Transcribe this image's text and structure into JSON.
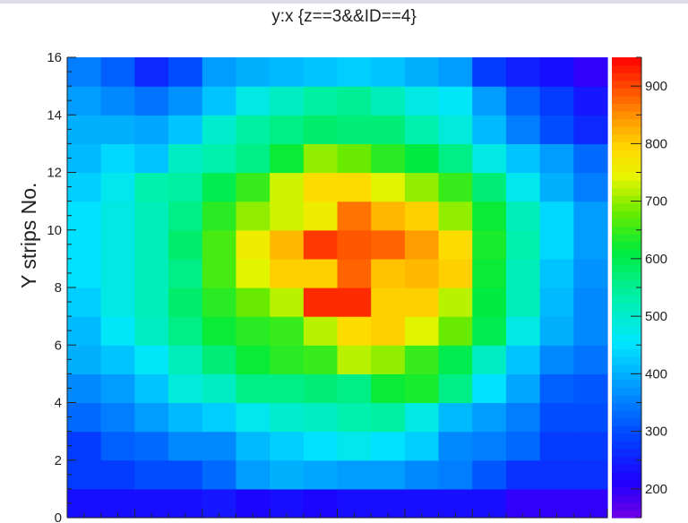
{
  "chart_data": {
    "type": "heatmap",
    "title": "y:x {z==3&&ID==4}",
    "xlabel": "",
    "ylabel": "Y strips No.",
    "xlim": [
      0,
      16
    ],
    "ylim": [
      0,
      16
    ],
    "y_ticks": [
      "0",
      "2",
      "4",
      "6",
      "8",
      "10",
      "12",
      "14",
      "16"
    ],
    "colorbar": {
      "min": 150,
      "max": 950,
      "ticks": [
        "200",
        "300",
        "400",
        "500",
        "600",
        "700",
        "800",
        "900"
      ]
    },
    "grid": false,
    "z": [
      [
        230,
        230,
        230,
        230,
        240,
        220,
        230,
        220,
        230,
        230,
        230,
        230,
        230,
        200,
        200,
        200
      ],
      [
        280,
        280,
        300,
        300,
        330,
        380,
        400,
        390,
        380,
        380,
        360,
        350,
        310,
        270,
        270,
        270
      ],
      [
        280,
        320,
        330,
        360,
        360,
        410,
        430,
        450,
        470,
        450,
        430,
        360,
        350,
        330,
        280,
        280
      ],
      [
        330,
        350,
        380,
        410,
        430,
        470,
        500,
        510,
        530,
        540,
        480,
        410,
        380,
        350,
        300,
        300
      ],
      [
        360,
        380,
        420,
        490,
        510,
        560,
        560,
        570,
        560,
        620,
        630,
        560,
        450,
        390,
        320,
        310
      ],
      [
        400,
        420,
        460,
        520,
        570,
        620,
        640,
        650,
        720,
        700,
        650,
        600,
        510,
        420,
        360,
        340
      ],
      [
        410,
        460,
        510,
        560,
        620,
        640,
        650,
        720,
        790,
        800,
        740,
        680,
        600,
        480,
        400,
        360
      ],
      [
        430,
        480,
        520,
        580,
        640,
        680,
        720,
        920,
        920,
        800,
        800,
        720,
        610,
        520,
        410,
        360
      ],
      [
        450,
        480,
        520,
        560,
        660,
        740,
        800,
        800,
        880,
        810,
        820,
        800,
        620,
        520,
        420,
        370
      ],
      [
        450,
        480,
        520,
        580,
        660,
        760,
        820,
        910,
        890,
        880,
        840,
        790,
        630,
        530,
        440,
        380
      ],
      [
        450,
        480,
        520,
        560,
        640,
        700,
        730,
        760,
        870,
        820,
        800,
        700,
        620,
        520,
        440,
        380
      ],
      [
        430,
        470,
        530,
        540,
        600,
        650,
        730,
        790,
        790,
        740,
        700,
        650,
        570,
        470,
        400,
        350
      ],
      [
        410,
        440,
        420,
        510,
        530,
        560,
        620,
        700,
        680,
        640,
        610,
        560,
        480,
        420,
        380,
        330
      ],
      [
        400,
        400,
        390,
        420,
        500,
        540,
        560,
        580,
        570,
        570,
        530,
        490,
        410,
        350,
        300,
        260
      ],
      [
        380,
        360,
        340,
        370,
        420,
        480,
        510,
        540,
        550,
        520,
        480,
        460,
        380,
        320,
        280,
        240
      ],
      [
        350,
        320,
        260,
        300,
        380,
        400,
        410,
        420,
        430,
        420,
        400,
        380,
        280,
        250,
        230,
        200
      ]
    ]
  }
}
